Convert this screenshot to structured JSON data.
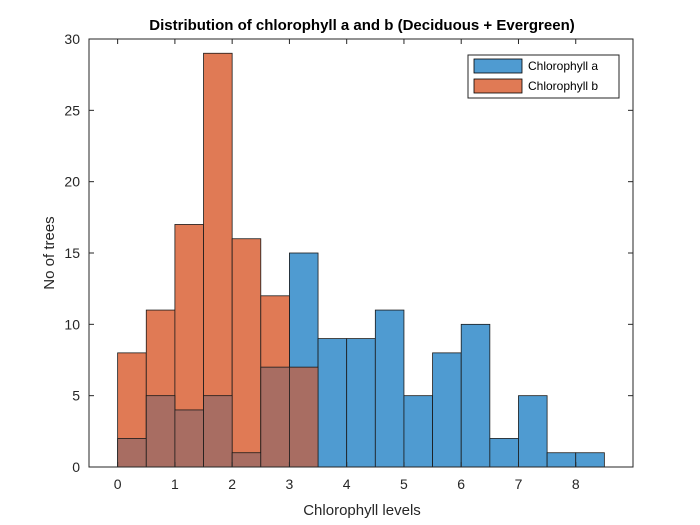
{
  "chart_data": {
    "type": "bar",
    "title": "Distribution of chlorophyll a and b (Deciduous + Evergreen)",
    "xlabel": "Chlorophyll levels",
    "ylabel": "No of trees",
    "xlim": [
      -0.5,
      9
    ],
    "ylim": [
      0,
      30
    ],
    "xticks": [
      "0",
      "1",
      "2",
      "3",
      "4",
      "5",
      "6",
      "7",
      "8"
    ],
    "yticks": [
      "0",
      "5",
      "10",
      "15",
      "20",
      "25",
      "30"
    ],
    "grid": false,
    "legend_position": "top-right",
    "bin_width": 0.5,
    "series": [
      {
        "name": "Chlorophyll a",
        "color": "#4f9bd1",
        "bin_starts": [
          0,
          0.5,
          1,
          1.5,
          2,
          2.5,
          3,
          3.5,
          4,
          4.5,
          5,
          5.5,
          6,
          6.5,
          7,
          7.5,
          8
        ],
        "values": [
          2,
          5,
          4,
          5,
          1,
          7,
          15,
          9,
          9,
          11,
          5,
          8,
          10,
          2,
          5,
          1,
          1
        ]
      },
      {
        "name": "Chlorophyll b",
        "color": "#e07a55",
        "bin_starts": [
          0,
          0.5,
          1,
          1.5,
          2,
          2.5,
          3
        ],
        "values": [
          8,
          11,
          17,
          29,
          16,
          12,
          7
        ]
      }
    ],
    "overlap_color": "#a86d62"
  }
}
